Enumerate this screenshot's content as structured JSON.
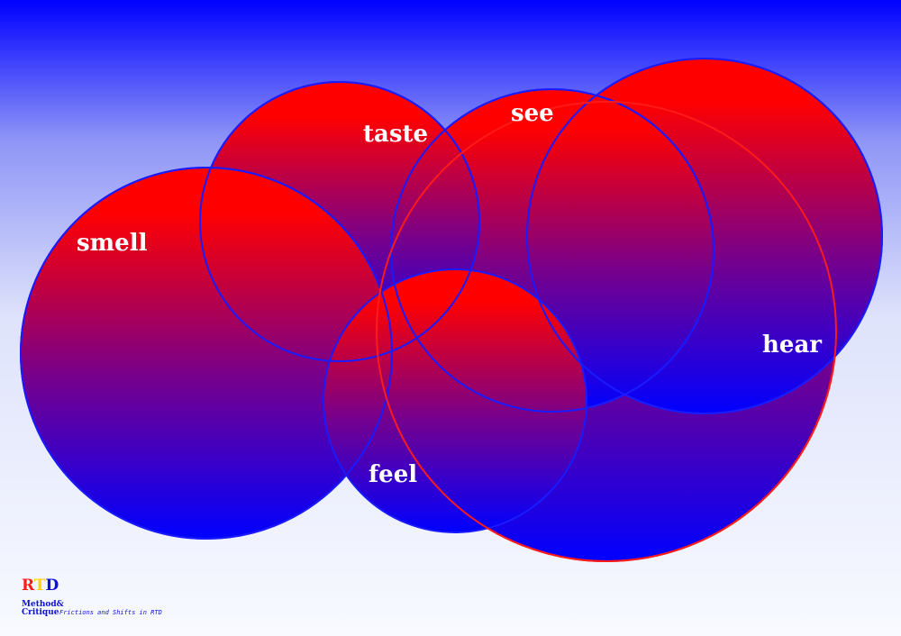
{
  "senses": [
    {
      "label": "smell"
    },
    {
      "label": "taste"
    },
    {
      "label": "see"
    },
    {
      "label": "hear"
    },
    {
      "label": "feel"
    }
  ],
  "logo": {
    "letters": [
      {
        "char": "R",
        "color": "#ff1a1a"
      },
      {
        "char": "T",
        "color": "#ffd500"
      },
      {
        "char": "D",
        "color": "#1010dd"
      }
    ],
    "method_line1": "Method&",
    "method_line2": "Critique",
    "tagline": "Frictions and Shifts in RTD"
  },
  "colors": {
    "background_top": "#0000ff",
    "background_bottom": "#f8faff",
    "circle_top": "#ff0000",
    "circle_bottom": "#0000ff",
    "circle_stroke": "#1a1aff",
    "circle_stroke_alt": "#ff1a1a",
    "label_text": "#ffffff"
  }
}
